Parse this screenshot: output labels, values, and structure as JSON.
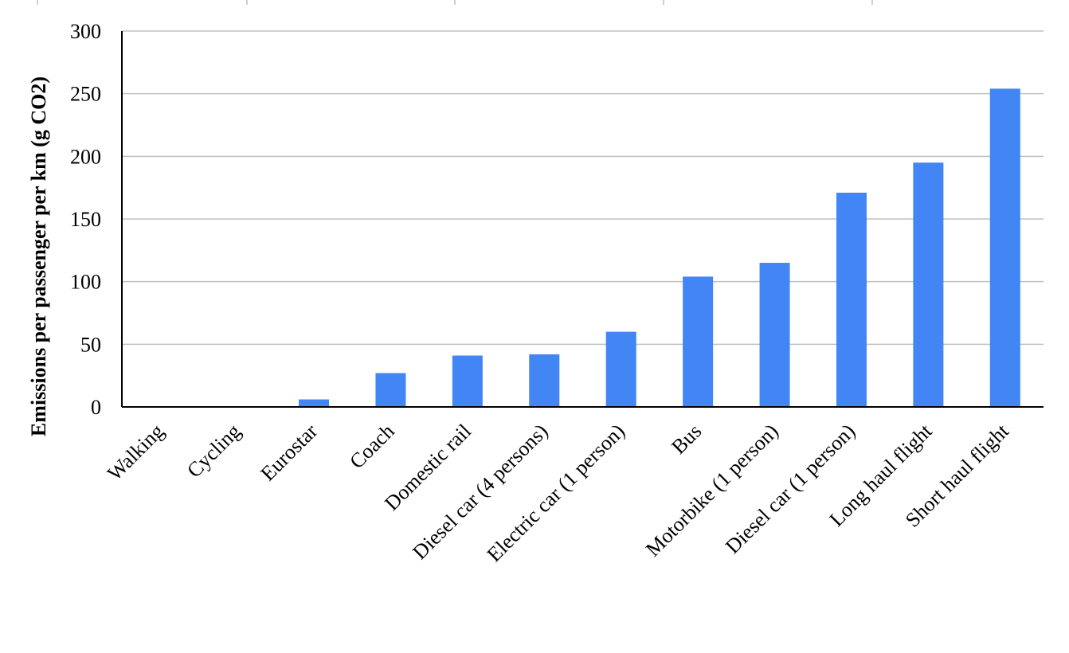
{
  "chart_data": {
    "type": "bar",
    "title": "",
    "xlabel": "",
    "ylabel": "Emissions per passenger per km (g CO2)",
    "categories": [
      "Walking",
      "Cycling",
      "Eurostar",
      "Coach",
      "Domestic rail",
      "Diesel car (4 persons)",
      "Electric car (1 person)",
      "Bus",
      "Motorbike (1 person)",
      "Diesel car (1 person)",
      "Long haul flight",
      "Short haul flight"
    ],
    "series": [
      {
        "values": [
          0,
          0,
          6,
          27,
          41,
          42,
          60,
          104,
          115,
          171,
          195,
          254
        ]
      }
    ],
    "ylim": [
      0,
      300
    ],
    "yticks": [
      0,
      50,
      100,
      150,
      200,
      250,
      300
    ],
    "grid": true,
    "legend": "none",
    "colors": {
      "bar": "#4285f4",
      "grid": "#c0c0c0",
      "axis": "#000000"
    }
  }
}
